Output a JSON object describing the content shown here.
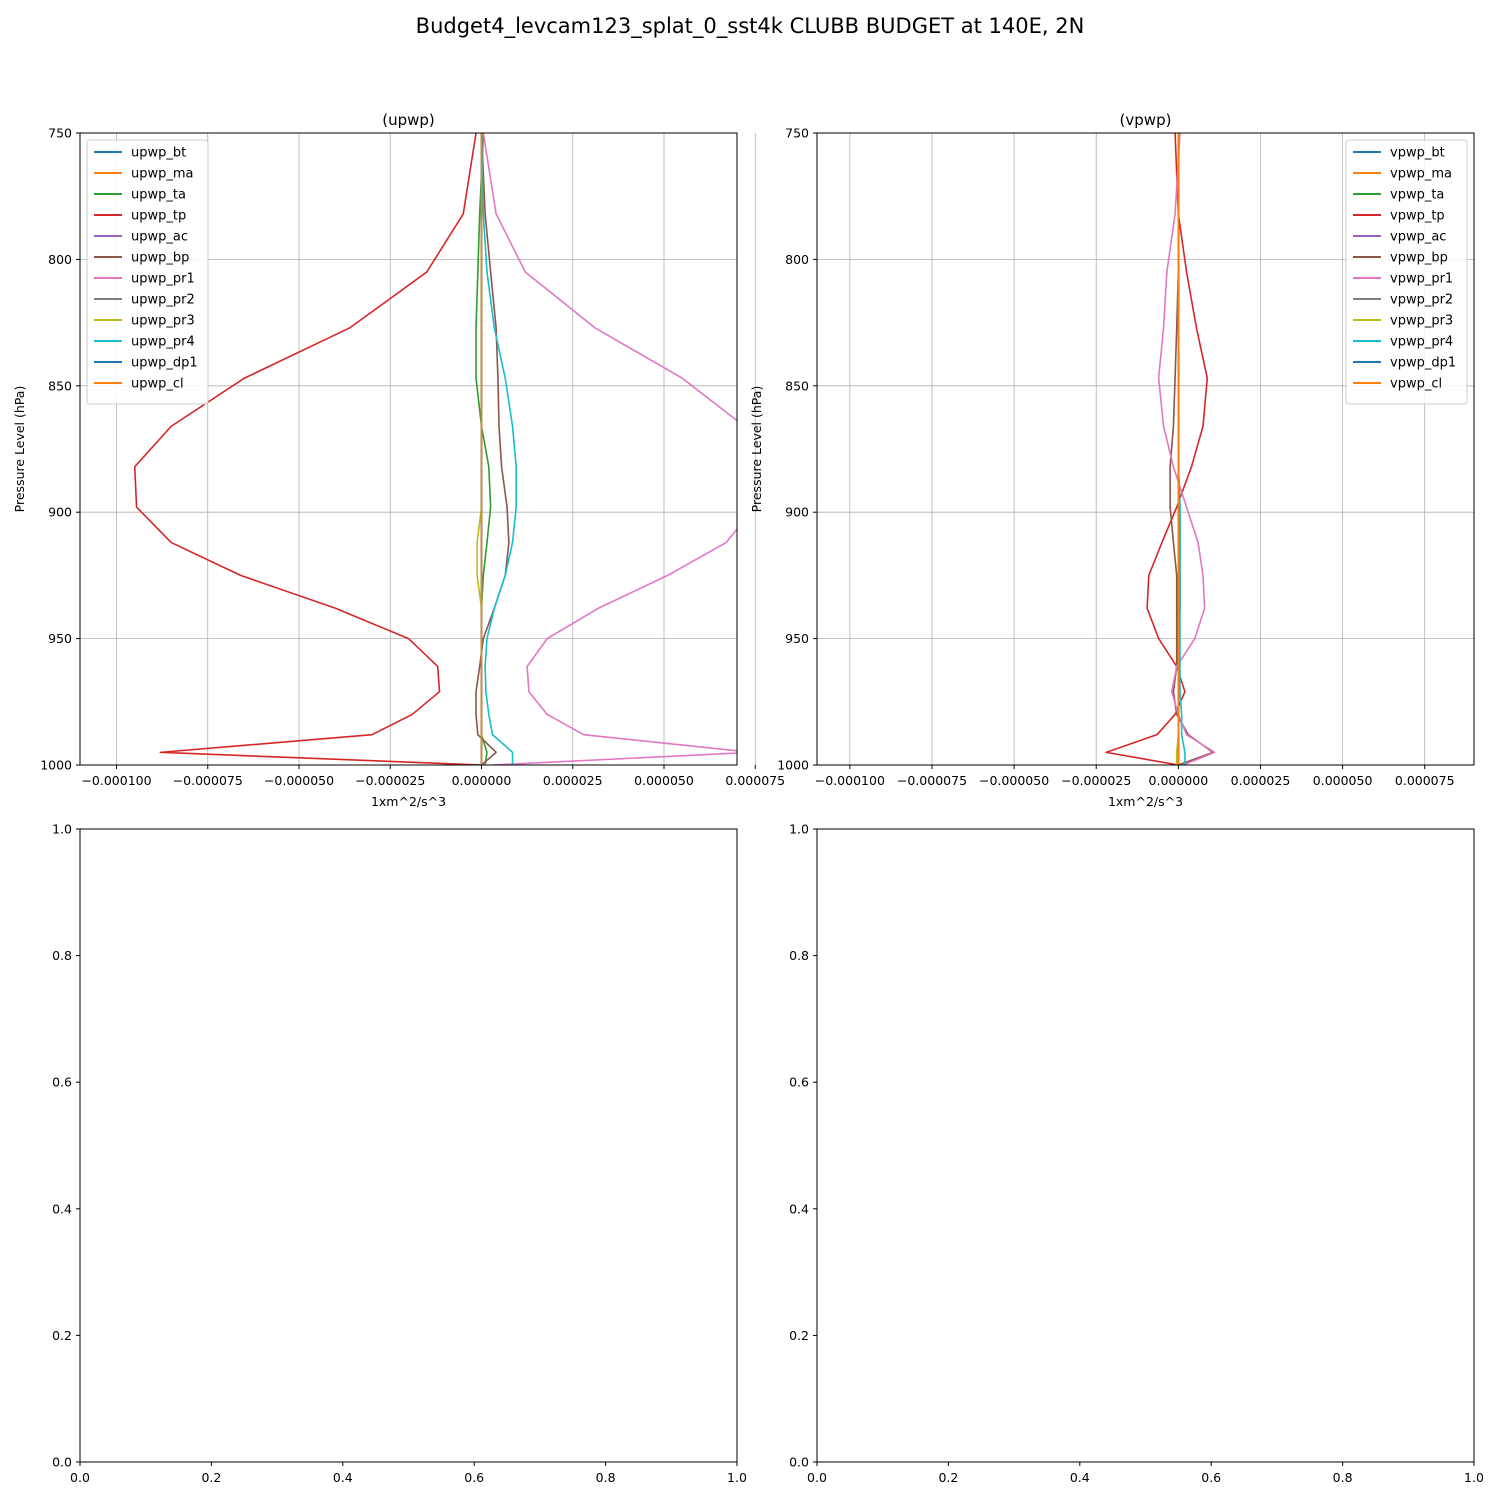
{
  "figure": {
    "title": "Budget4_levcam123_splat_0_sst4k CLUBB BUDGET at 140E, 2N"
  },
  "chart_data": [
    {
      "type": "line",
      "title": "(upwp)",
      "xlabel": "1xm^2/s^3",
      "ylabel": "Pressure Level (hPa)",
      "xlim": [
        -0.00011,
        7e-05
      ],
      "ylim": [
        1000,
        750
      ],
      "xticks": [
        -0.0001,
        -7.5e-05,
        -5e-05,
        -2.5e-05,
        0.0,
        2.5e-05,
        5e-05,
        7.5e-05
      ],
      "xtick_labels": [
        "−0.000100",
        "−0.000075",
        "−0.000050",
        "−0.000025",
        "0.000000",
        "0.000025",
        "0.000050",
        "0.000075"
      ],
      "yticks": [
        750,
        800,
        850,
        900,
        950,
        1000
      ],
      "ytick_labels": [
        "750",
        "800",
        "850",
        "900",
        "950",
        "1000"
      ],
      "grid": true,
      "legend_position": "upper-left",
      "levels": [
        750,
        782,
        805,
        827,
        847,
        866,
        882,
        898,
        912,
        925,
        938,
        950,
        961,
        971,
        980,
        988,
        995,
        1000
      ],
      "series": [
        {
          "name": "upwp_bt",
          "color": "#1f77b4",
          "x": [
            0,
            0,
            0,
            0,
            0,
            0,
            0,
            0,
            0,
            0,
            0,
            0,
            0,
            0,
            0,
            0,
            0,
            0
          ]
        },
        {
          "name": "upwp_ma",
          "color": "#ff7f0e",
          "x": [
            0,
            0,
            0,
            0,
            0,
            0,
            0,
            0,
            0,
            0,
            0,
            0,
            0,
            0,
            0,
            0,
            0,
            0
          ]
        },
        {
          "name": "upwp_ta",
          "color": "#2ca02c",
          "x": [
            5e-07,
            -5e-07,
            -1e-06,
            -1.5e-06,
            -1.5e-06,
            0,
            2e-06,
            2.5e-06,
            1.5e-06,
            5e-07,
            0,
            0,
            0,
            0,
            0,
            0,
            1.5e-06,
            1e-06
          ]
        },
        {
          "name": "upwp_tp",
          "color": "#d62728",
          "x": [
            -1.5e-06,
            -5e-06,
            -1.5e-05,
            -3.6e-05,
            -6.5e-05,
            -8.5e-05,
            -9.5e-05,
            -9.45e-05,
            -8.5e-05,
            -6.6e-05,
            -4e-05,
            -2e-05,
            -1.2e-05,
            -1.15e-05,
            -1.9e-05,
            -3e-05,
            -8.8e-05,
            0
          ]
        },
        {
          "name": "upwp_ac",
          "color": "#9467bd",
          "x": [
            0,
            0,
            0,
            0,
            0,
            0,
            0,
            0,
            0,
            0,
            0,
            0,
            0,
            0,
            0,
            0,
            0,
            0
          ]
        },
        {
          "name": "upwp_bp",
          "color": "#8c564b",
          "x": [
            0,
            1e-06,
            2.5e-06,
            4e-06,
            4.5e-06,
            4.8e-06,
            5.5e-06,
            7e-06,
            7.5e-06,
            6.5e-06,
            3.5e-06,
            5e-07,
            -5e-07,
            -1.5e-06,
            -1.5e-06,
            -1e-06,
            4e-06,
            0
          ]
        },
        {
          "name": "upwp_pr1",
          "color": "#e377c2",
          "x": [
            5e-07,
            4e-06,
            1.2e-05,
            3.1e-05,
            5.5e-05,
            7.2e-05,
            7.75e-05,
            7.5e-05,
            6.7e-05,
            5.1e-05,
            3.2e-05,
            1.8e-05,
            1.25e-05,
            1.3e-05,
            1.8e-05,
            2.8e-05,
            7.4e-05,
            3e-06
          ]
        },
        {
          "name": "upwp_pr2",
          "color": "#7f7f7f",
          "x": [
            0,
            0,
            0,
            0,
            0,
            0,
            0,
            0,
            0,
            0,
            0,
            0,
            0,
            0,
            0,
            0,
            0,
            0
          ]
        },
        {
          "name": "upwp_pr3",
          "color": "#bcbd22",
          "x": [
            0,
            0,
            0,
            0,
            0,
            0,
            0,
            0,
            -1.2e-06,
            -1.2e-06,
            0,
            0,
            0,
            0,
            0,
            0,
            0,
            0
          ]
        },
        {
          "name": "upwp_pr4",
          "color": "#17becf",
          "x": [
            0,
            5e-07,
            1.5e-06,
            3.5e-06,
            6.5e-06,
            8.5e-06,
            9.5e-06,
            9.5e-06,
            8.5e-06,
            6.5e-06,
            3.5e-06,
            1.5e-06,
            1e-06,
            1.2e-06,
            2e-06,
            3e-06,
            8.5e-06,
            8.5e-06
          ]
        },
        {
          "name": "upwp_dp1",
          "color": "#1f77b4",
          "x": [
            0,
            0,
            0,
            0,
            0,
            0,
            0,
            0,
            0,
            0,
            0,
            0,
            0,
            0,
            0,
            0,
            0,
            0
          ]
        },
        {
          "name": "upwp_cl",
          "color": "#ff7f0e",
          "x": [
            0,
            0,
            0,
            0,
            0,
            0,
            0,
            0,
            0,
            0,
            0,
            0,
            0,
            0,
            0,
            0,
            0,
            0
          ]
        }
      ]
    },
    {
      "type": "line",
      "title": "(vpwp)",
      "xlabel": "1xm^2/s^3",
      "ylabel": "Pressure Level (hPa)",
      "xlim": [
        -0.00011,
        9e-05
      ],
      "ylim": [
        1000,
        750
      ],
      "xticks": [
        -0.0001,
        -7.5e-05,
        -5e-05,
        -2.5e-05,
        0.0,
        2.5e-05,
        5e-05,
        7.5e-05
      ],
      "xtick_labels": [
        "−0.000100",
        "−0.000075",
        "−0.000050",
        "−0.000025",
        "0.000000",
        "0.000025",
        "0.000050",
        "0.000075"
      ],
      "yticks": [
        750,
        800,
        850,
        900,
        950,
        1000
      ],
      "ytick_labels": [
        "750",
        "800",
        "850",
        "900",
        "950",
        "1000"
      ],
      "grid": true,
      "legend_position": "upper-right",
      "levels": [
        750,
        782,
        805,
        827,
        847,
        866,
        882,
        898,
        912,
        925,
        938,
        950,
        961,
        971,
        980,
        988,
        995,
        1000
      ],
      "series": [
        {
          "name": "vpwp_bt",
          "color": "#1f77b4",
          "x": [
            0,
            0,
            0,
            0,
            0,
            0,
            0,
            0,
            0,
            0,
            0,
            0,
            0,
            0,
            0,
            0,
            0,
            0
          ]
        },
        {
          "name": "vpwp_ma",
          "color": "#ff7f0e",
          "x": [
            0,
            0,
            0,
            0,
            0,
            0,
            0,
            0,
            0,
            0,
            0,
            0,
            0,
            0,
            0,
            0,
            0,
            0
          ]
        },
        {
          "name": "vpwp_ta",
          "color": "#2ca02c",
          "x": [
            0,
            0,
            0,
            0,
            0,
            0,
            0,
            5e-07,
            5e-07,
            5e-07,
            5e-07,
            0,
            0,
            0,
            0,
            0,
            0,
            0
          ]
        },
        {
          "name": "vpwp_tp",
          "color": "#d62728",
          "x": [
            -1e-06,
            0,
            2.5e-06,
            5.5e-06,
            8.8e-06,
            7.5e-06,
            4e-06,
            -5e-07,
            -5e-06,
            -9e-06,
            -9.5e-06,
            -6e-06,
            -5e-07,
            2e-06,
            -1e-06,
            -6.5e-06,
            -2.2e-05,
            0
          ]
        },
        {
          "name": "vpwp_ac",
          "color": "#9467bd",
          "x": [
            0,
            0,
            0,
            0,
            0,
            0,
            0,
            0,
            0,
            0,
            0,
            0,
            0,
            0,
            0,
            0,
            0,
            0
          ]
        },
        {
          "name": "vpwp_bp",
          "color": "#8c564b",
          "x": [
            0,
            0,
            0,
            -5e-07,
            -1e-06,
            -1.5e-06,
            -2.5e-06,
            -2.5e-06,
            -1.5e-06,
            -5e-07,
            -5e-07,
            -5e-07,
            -5e-07,
            -1.5e-06,
            -5e-07,
            3e-06,
            1.05e-05,
            0
          ]
        },
        {
          "name": "vpwp_pr1",
          "color": "#e377c2",
          "x": [
            5e-07,
            -1e-06,
            -3.5e-06,
            -4.5e-06,
            -6e-06,
            -4.5e-06,
            -1.5e-06,
            2.5e-06,
            6e-06,
            7.5e-06,
            8e-06,
            5e-06,
            -5e-07,
            -2e-06,
            0,
            2.5e-06,
            1.1e-05,
            1.5e-06
          ]
        },
        {
          "name": "vpwp_pr2",
          "color": "#7f7f7f",
          "x": [
            0,
            0,
            0,
            0,
            0,
            0,
            0,
            0,
            0,
            0,
            0,
            0,
            0,
            0,
            0,
            0,
            0,
            0
          ]
        },
        {
          "name": "vpwp_pr3",
          "color": "#bcbd22",
          "x": [
            0,
            0,
            0,
            0,
            0,
            0,
            0,
            0,
            0,
            0,
            0,
            0,
            0,
            0,
            0,
            0,
            -5e-07,
            -5e-07
          ]
        },
        {
          "name": "vpwp_pr4",
          "color": "#17becf",
          "x": [
            0,
            0,
            0,
            0,
            0,
            0,
            0,
            5e-07,
            5e-07,
            5e-07,
            5e-07,
            5e-07,
            5e-07,
            5e-07,
            1e-06,
            1e-06,
            2e-06,
            2e-06
          ]
        },
        {
          "name": "vpwp_dp1",
          "color": "#1f77b4",
          "x": [
            0,
            0,
            0,
            0,
            0,
            0,
            0,
            0,
            0,
            0,
            0,
            0,
            0,
            0,
            0,
            0,
            0,
            0
          ]
        },
        {
          "name": "vpwp_cl",
          "color": "#ff7f0e",
          "x": [
            0,
            0,
            0,
            0,
            0,
            0,
            0,
            0,
            0,
            0,
            0,
            0,
            0,
            0,
            0,
            0,
            0,
            0
          ]
        }
      ]
    },
    {
      "type": "line",
      "title": "",
      "xlim": [
        0,
        1
      ],
      "ylim": [
        0,
        1
      ],
      "xticks": [
        0,
        0.2,
        0.4,
        0.6,
        0.8,
        1.0
      ],
      "xtick_labels": [
        "0.0",
        "0.2",
        "0.4",
        "0.6",
        "0.8",
        "1.0"
      ],
      "yticks": [
        0,
        0.2,
        0.4,
        0.6,
        0.8,
        1.0
      ],
      "ytick_labels": [
        "0.0",
        "0.2",
        "0.4",
        "0.6",
        "0.8",
        "1.0"
      ],
      "grid": false,
      "series": []
    },
    {
      "type": "line",
      "title": "",
      "xlim": [
        0,
        1
      ],
      "ylim": [
        0,
        1
      ],
      "xticks": [
        0,
        0.2,
        0.4,
        0.6,
        0.8,
        1.0
      ],
      "xtick_labels": [
        "0.0",
        "0.2",
        "0.4",
        "0.6",
        "0.8",
        "1.0"
      ],
      "yticks": [
        0,
        0.2,
        0.4,
        0.6,
        0.8,
        1.0
      ],
      "ytick_labels": [
        "0.0",
        "0.2",
        "0.4",
        "0.6",
        "0.8",
        "1.0"
      ],
      "grid": false,
      "series": []
    }
  ]
}
